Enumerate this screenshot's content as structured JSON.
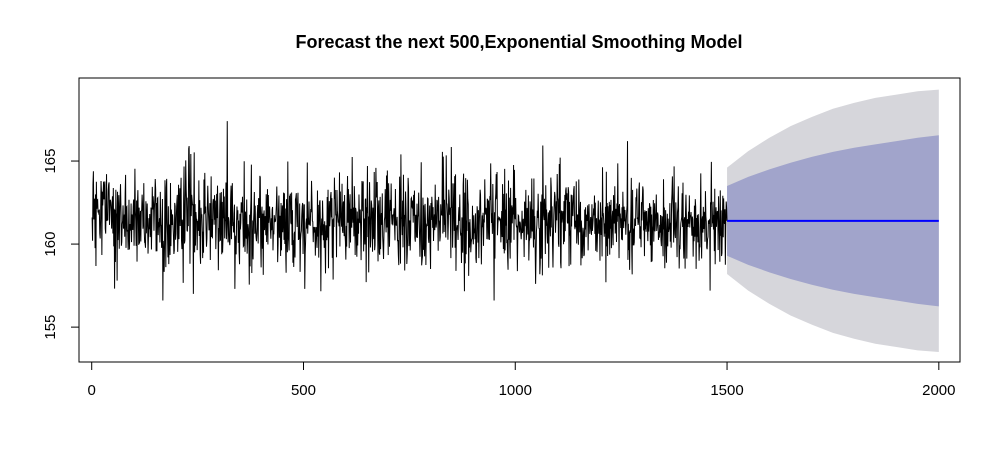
{
  "chart_data": {
    "type": "line",
    "title": "Forecast the next 500,Exponential Smoothing Model",
    "xlabel": "",
    "ylabel": "",
    "xlim": [
      -30,
      2050
    ],
    "ylim": [
      152.9,
      170.0
    ],
    "x_ticks": [
      0,
      500,
      1000,
      1500,
      2000
    ],
    "x_tick_labels": [
      "0",
      "500",
      "1000",
      "1500",
      "2000"
    ],
    "y_ticks": [
      155,
      160,
      165
    ],
    "y_tick_labels": [
      "155",
      "160",
      "165"
    ],
    "grid": false,
    "legend": "none",
    "observed": {
      "x_start": 1,
      "x_end": 1500,
      "mean": 161.4,
      "approx_sd": 1.4,
      "observed_min": 156.6,
      "observed_max": 167.4,
      "sample_points": [
        [
          1,
          161.6
        ],
        [
          30,
          163.2
        ],
        [
          60,
          157.8
        ],
        [
          120,
          162.4
        ],
        [
          180,
          159.2
        ],
        [
          230,
          165.9
        ],
        [
          240,
          157.0
        ],
        [
          320,
          167.4
        ],
        [
          400,
          158.6
        ],
        [
          500,
          161.0
        ],
        [
          610,
          163.0
        ],
        [
          730,
          165.4
        ],
        [
          800,
          158.5
        ],
        [
          950,
          156.6
        ],
        [
          1000,
          161.5
        ],
        [
          1100,
          162.8
        ],
        [
          1200,
          159.0
        ],
        [
          1265,
          166.2
        ],
        [
          1350,
          163.9
        ],
        [
          1460,
          157.2
        ],
        [
          1500,
          161.4
        ]
      ]
    },
    "forecast": {
      "x": [
        1500,
        1550,
        1600,
        1650,
        1700,
        1750,
        1800,
        1850,
        1900,
        1950,
        2000
      ],
      "mean": [
        161.4,
        161.4,
        161.4,
        161.4,
        161.4,
        161.4,
        161.4,
        161.4,
        161.4,
        161.4,
        161.4
      ],
      "lo80": [
        159.3,
        158.75,
        158.3,
        157.9,
        157.55,
        157.25,
        157.0,
        156.8,
        156.6,
        156.4,
        156.25
      ],
      "hi80": [
        163.5,
        164.05,
        164.5,
        164.9,
        165.25,
        165.55,
        165.8,
        166.0,
        166.2,
        166.4,
        166.55
      ],
      "lo95": [
        158.2,
        157.2,
        156.4,
        155.7,
        155.15,
        154.65,
        154.3,
        154.0,
        153.8,
        153.6,
        153.5
      ],
      "hi95": [
        164.6,
        165.6,
        166.4,
        167.1,
        167.65,
        168.15,
        168.5,
        168.8,
        169.0,
        169.2,
        169.3
      ]
    },
    "colors": {
      "observed_line": "#000000",
      "forecast_line": "#0000ff",
      "band80": "#a1a4cb",
      "band95": "#d6d6db",
      "axis": "#000000"
    }
  }
}
